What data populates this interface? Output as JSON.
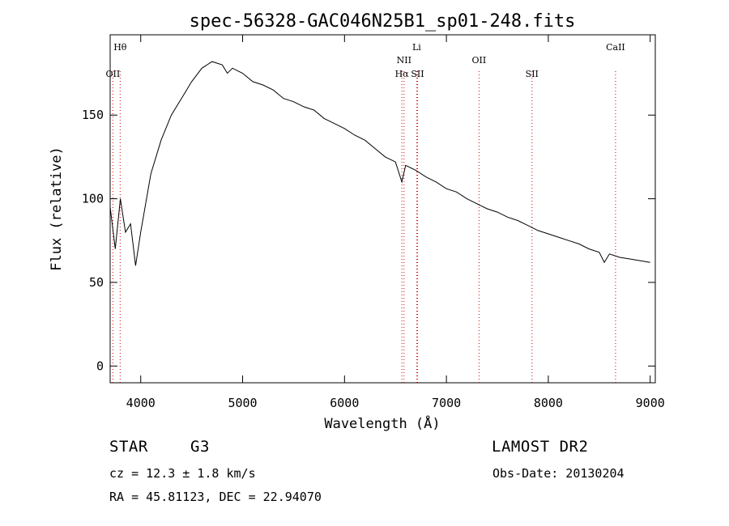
{
  "chart_data": {
    "type": "line",
    "title": "spec-56328-GAC046N25B1_sp01-248.fits",
    "xlabel": "Wavelength (Å)",
    "ylabel": "Flux (relative)",
    "xlim": [
      3700,
      9050
    ],
    "ylim": [
      -10,
      198
    ],
    "xticks": [
      4000,
      5000,
      6000,
      7000,
      8000,
      9000
    ],
    "yticks": [
      0,
      50,
      100,
      150
    ],
    "grid": false,
    "line_color": "#000000",
    "marker_color": "#cc0000",
    "lines": [
      {
        "label": "Hθ",
        "x": 3798
      },
      {
        "label": "OII",
        "x": 3727
      },
      {
        "label": "Hα",
        "x": 6563
      },
      {
        "label": "NII",
        "x": 6584
      },
      {
        "label": "SII",
        "x": 6717
      },
      {
        "label": "Li",
        "x": 6708
      },
      {
        "label": "OII",
        "x": 7320
      },
      {
        "label": "SII",
        "x": 7840
      },
      {
        "label": "CaII",
        "x": 8660
      }
    ],
    "series": [
      {
        "x": [
          3700,
          3750,
          3800,
          3850,
          3900,
          3950,
          4000,
          4100,
          4200,
          4300,
          4400,
          4500,
          4600,
          4700,
          4800,
          4850,
          4900,
          5000,
          5100,
          5200,
          5300,
          5400,
          5500,
          5600,
          5700,
          5800,
          5900,
          6000,
          6100,
          6200,
          6300,
          6400,
          6500,
          6563,
          6600,
          6700,
          6800,
          6900,
          7000,
          7100,
          7200,
          7300,
          7400,
          7500,
          7600,
          7700,
          7800,
          7900,
          8000,
          8100,
          8200,
          8300,
          8400,
          8500,
          8550,
          8600,
          8700,
          8800,
          8900,
          9000
        ],
        "y": [
          95,
          70,
          100,
          80,
          85,
          60,
          80,
          115,
          135,
          150,
          160,
          170,
          178,
          182,
          180,
          175,
          178,
          175,
          170,
          168,
          165,
          160,
          158,
          155,
          153,
          148,
          145,
          142,
          138,
          135,
          130,
          125,
          122,
          110,
          120,
          117,
          113,
          110,
          106,
          104,
          100,
          97,
          94,
          92,
          89,
          87,
          84,
          81,
          79,
          77,
          75,
          73,
          70,
          68,
          62,
          67,
          65,
          64,
          63,
          62
        ]
      }
    ]
  },
  "footer": {
    "object_class": "STAR",
    "subclass": "G3",
    "survey": "LAMOST DR2",
    "redshift": "cz = 12.3 ± 1.8 km/s",
    "obs_date": "Obs-Date: 20130204",
    "coords": "RA =  45.81123, DEC =  22.94070"
  }
}
